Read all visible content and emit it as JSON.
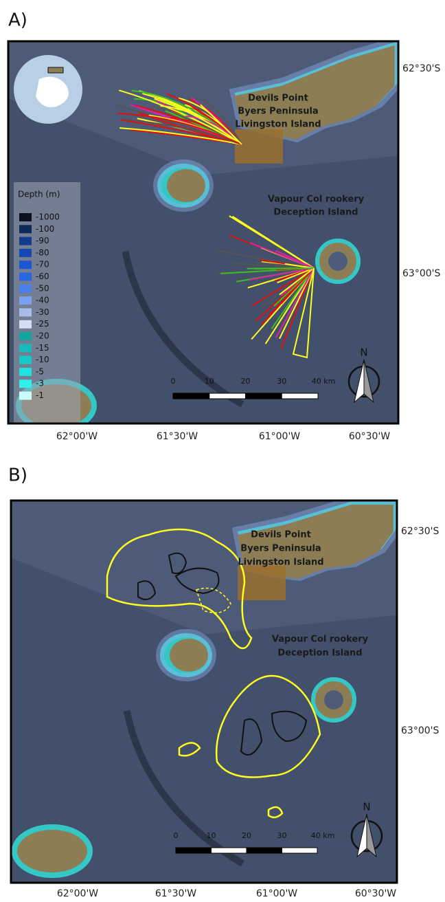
{
  "panels": [
    {
      "label": "A)",
      "places": [
        "Devils Point",
        "Byers Peninsula",
        "Livingston Island",
        "Vapour Col rookery",
        "Deception Island"
      ],
      "lat_ticks": [
        "62°30'S",
        "63°00'S"
      ],
      "lon_ticks": [
        "62°00'W",
        "61°30'W",
        "61°00'W",
        "60°30'W"
      ],
      "scale_bar": [
        0,
        10,
        20,
        30,
        "40 km"
      ],
      "north": "N",
      "legend": {
        "title": "Depth (m)",
        "entries": [
          {
            "value": -1000,
            "color": "#0a1020"
          },
          {
            "value": -100,
            "color": "#0d2a5a"
          },
          {
            "value": -90,
            "color": "#123d8a"
          },
          {
            "value": -80,
            "color": "#1548b0"
          },
          {
            "value": -70,
            "color": "#1a57d0"
          },
          {
            "value": -60,
            "color": "#2a66e0"
          },
          {
            "value": -50,
            "color": "#4a80ea"
          },
          {
            "value": -40,
            "color": "#7a9ef0"
          },
          {
            "value": -30,
            "color": "#a9bde8"
          },
          {
            "value": -25,
            "color": "#d4ddf2"
          },
          {
            "value": -20,
            "color": "#14a4a0"
          },
          {
            "value": -15,
            "color": "#1ab8b8"
          },
          {
            "value": -10,
            "color": "#16c8c8"
          },
          {
            "value": -5,
            "color": "#20e0e0"
          },
          {
            "value": -3,
            "color": "#30f0ec"
          },
          {
            "value": -1,
            "color": "#c8fff8"
          }
        ]
      }
    },
    {
      "label": "B)",
      "places": [
        "Devils Point",
        "Byers Peninsula",
        "Livingston Island",
        "Vapour Col rookery",
        "Deception Island"
      ],
      "lat_ticks": [
        "62°30'S",
        "63°00'S"
      ],
      "lon_ticks": [
        "62°00'W",
        "61°30'W",
        "61°00'W",
        "60°30'W"
      ],
      "scale_bar": [
        0,
        10,
        20,
        30,
        "40 km"
      ],
      "north": "N"
    }
  ]
}
